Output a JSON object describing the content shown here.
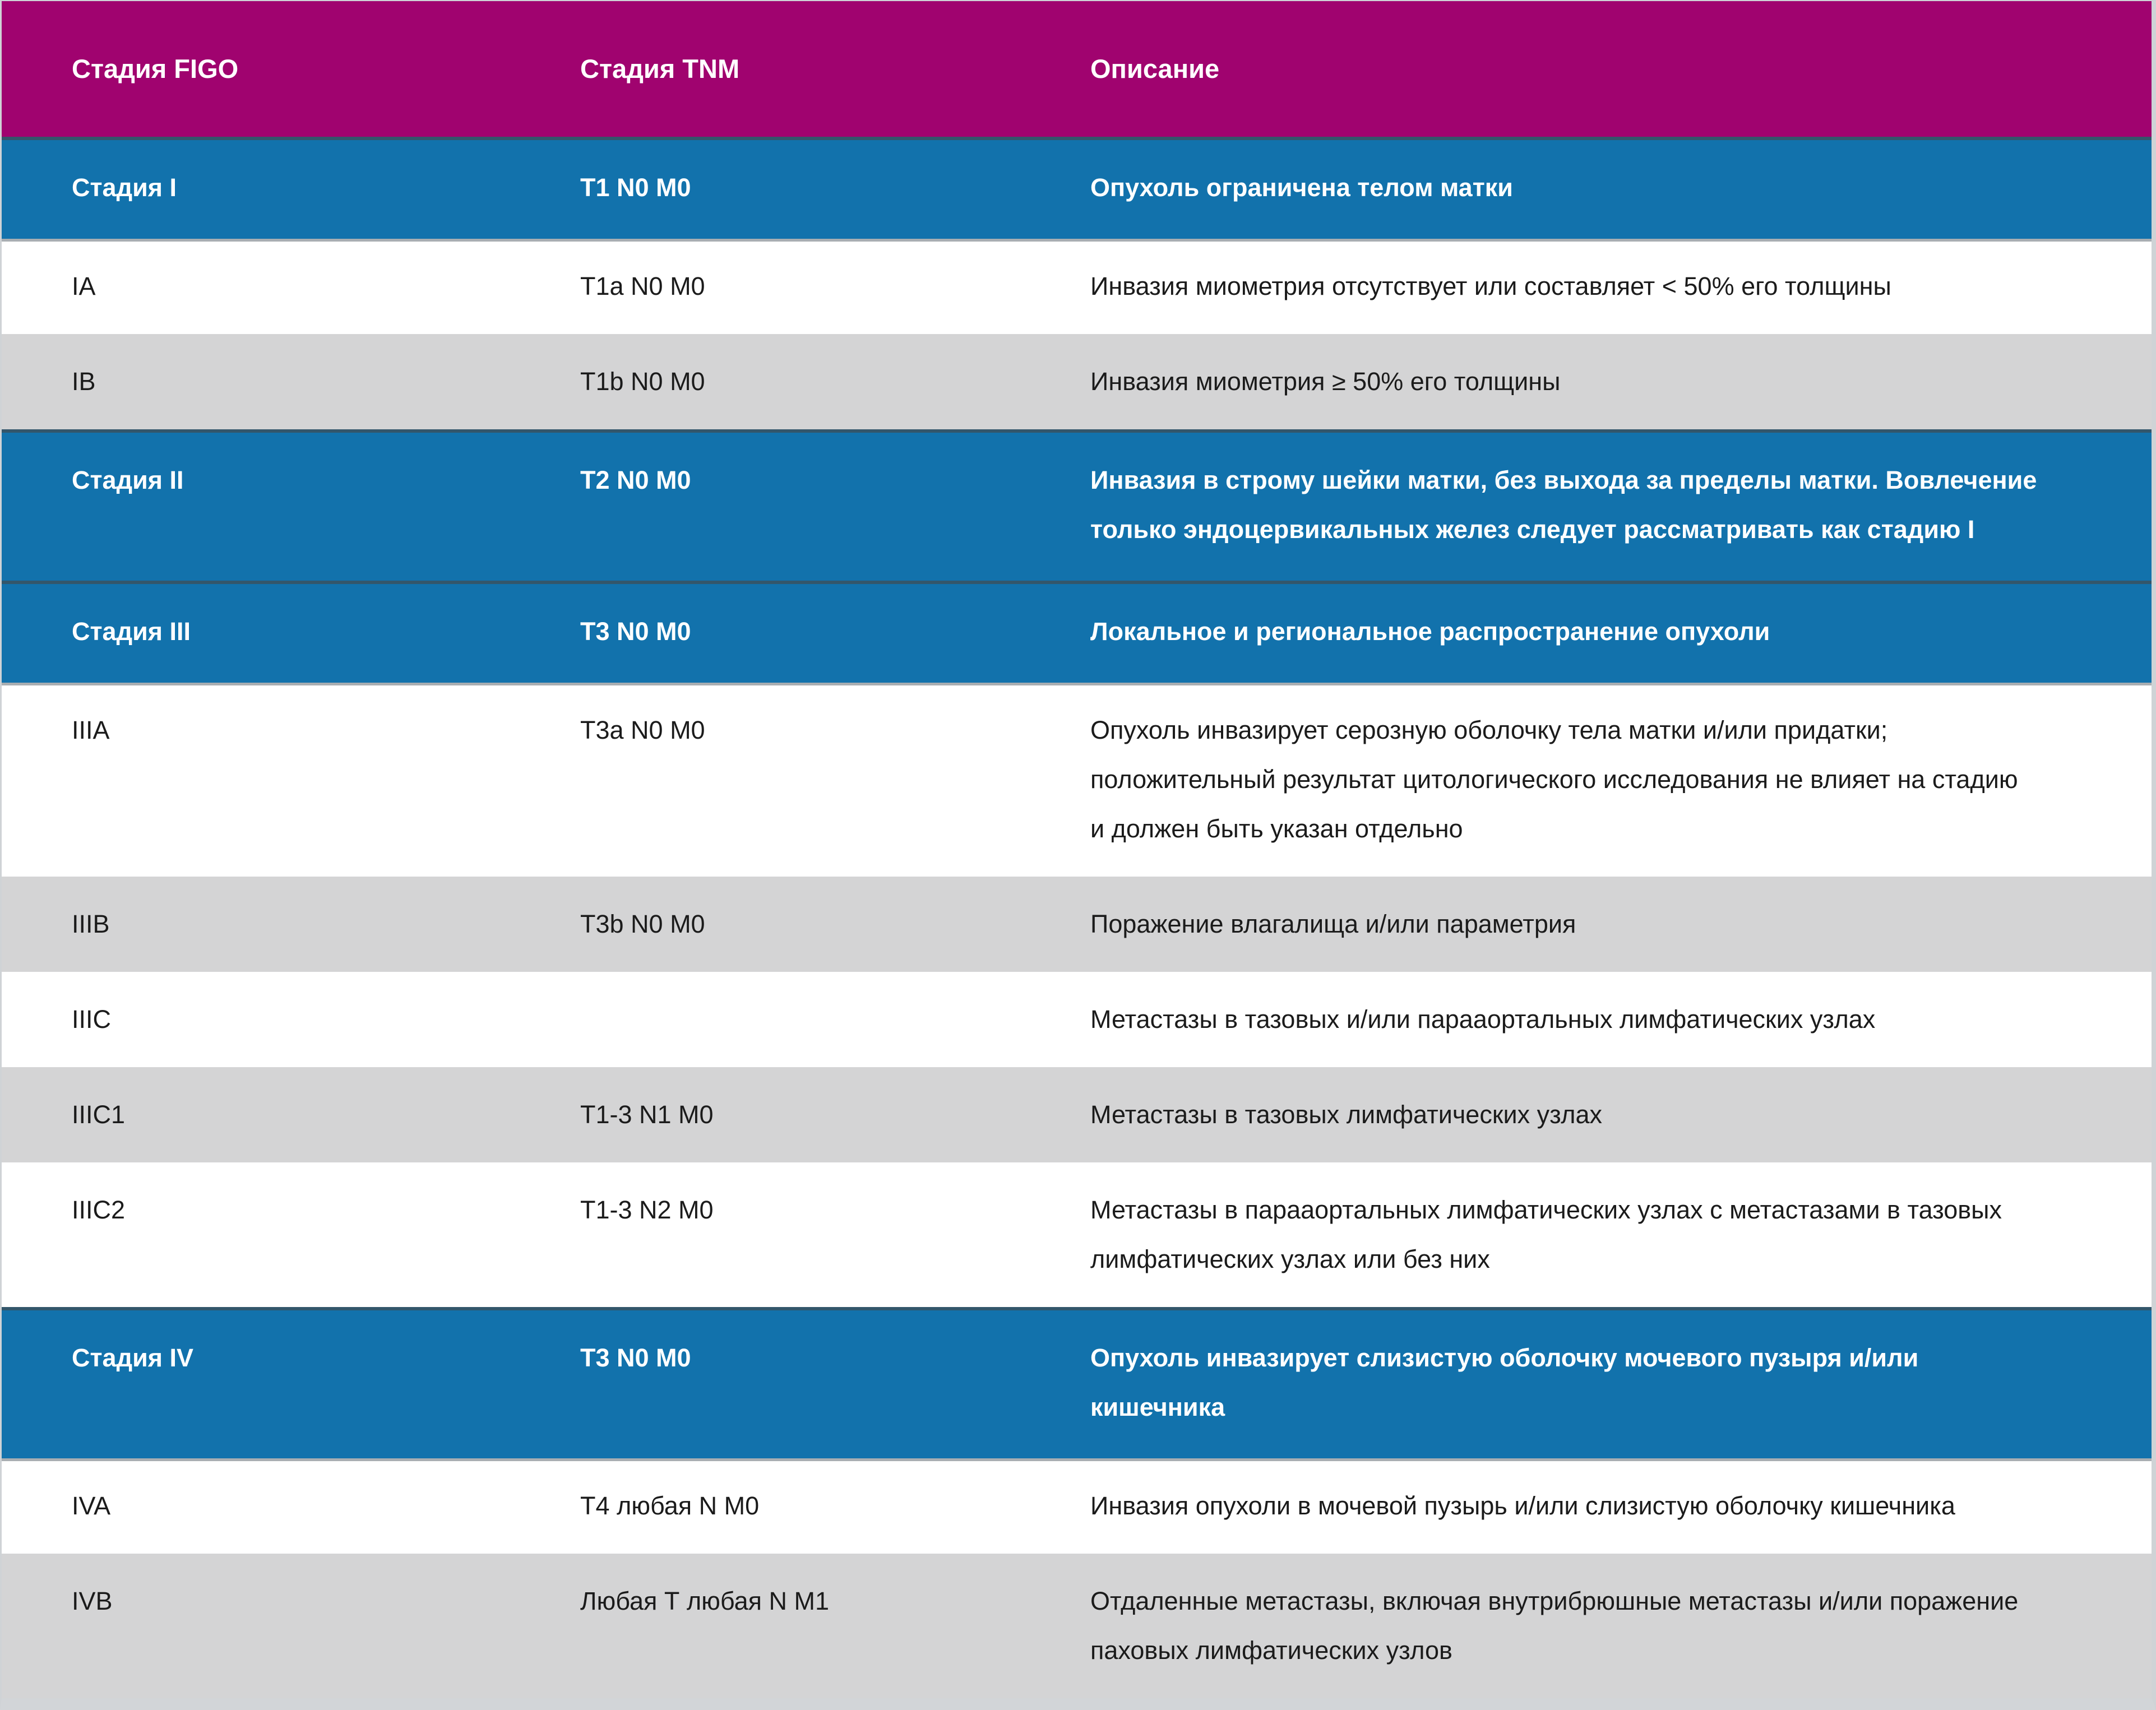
{
  "colors": {
    "header_bg": "#A0036F",
    "stage_row_bg": "#1272AC",
    "row_white_bg": "#FFFFFF",
    "row_gray_bg": "#D4D4D5",
    "header_text": "#FFFFFF",
    "body_text": "#1B1B1B",
    "separator_dark": "#33566B",
    "separator_light": "#A9AEB2",
    "outer_border": "#CFD3D6"
  },
  "table": {
    "header": {
      "figo": "Стадия FIGO",
      "tnm": "Стадия TNM",
      "description": "Описание"
    },
    "rows": [
      {
        "type": "stage",
        "figo": "Стадия I",
        "tnm": "T1 N0 M0",
        "description": "Опухоль ограничена телом матки"
      },
      {
        "type": "sub-white",
        "figo": "IA",
        "tnm": "T1a N0 M0",
        "description": "Инвазия миометрия отсутствует или составляет < 50% его толщины"
      },
      {
        "type": "sub-gray",
        "figo": "IB",
        "tnm": "T1b N0 M0",
        "description": "Инвазия миометрия ≥ 50% его толщины"
      },
      {
        "type": "stage",
        "figo": "Стадия II",
        "tnm": "T2 N0 M0",
        "description": "Инвазия в строму шейки матки, без выхода за пределы матки. Вовлечение\nтолько эндоцервикальных желез следует рассматривать как стадию I"
      },
      {
        "type": "stage",
        "figo": "Стадия III",
        "tnm": "T3 N0 M0",
        "description": "Локальное и региональное распространение опухоли"
      },
      {
        "type": "sub-white",
        "figo": "IIIA",
        "tnm": "T3a N0 M0",
        "description": "Опухоль инвазирует серозную оболочку тела матки и/или придатки;\nположительный результат цитологического исследования не влияет на стадию\nи должен быть указан отдельно"
      },
      {
        "type": "sub-gray",
        "figo": "IIIB",
        "tnm": "T3b N0 M0",
        "description": "Поражение влагалища и/или параметрия"
      },
      {
        "type": "sub-white",
        "figo": "IIIC",
        "tnm": "",
        "description": "Метастазы в тазовых и/или парааортальных лимфатических узлах"
      },
      {
        "type": "sub-gray",
        "figo": "IIIC1",
        "tnm": "T1-3 N1 M0",
        "description": "Метастазы в тазовых лимфатических узлах"
      },
      {
        "type": "sub-white",
        "figo": "IIIC2",
        "tnm": "T1-3 N2 M0",
        "description": "Метастазы в парааортальных лимфатических узлах с метастазами в тазовых\nлимфатических узлах или без них"
      },
      {
        "type": "stage",
        "figo": "Стадия IV",
        "tnm": "Т3 N0 M0",
        "description": "Опухоль инвазирует слизистую оболочку мочевого пузыря и/или\nкишечника"
      },
      {
        "type": "sub-white",
        "figo": "IVA",
        "tnm": "Т4 любая N M0",
        "description": "Инвазия опухоли в мочевой пузырь и/или слизистую оболочку кишечника"
      },
      {
        "type": "sub-gray",
        "figo": "IVB",
        "tnm": "Любая Т любая N M1",
        "description": "Отдаленные метастазы, включая внутрибрюшные метастазы и/или поражение\nпаховых лимфатических узлов"
      }
    ]
  }
}
